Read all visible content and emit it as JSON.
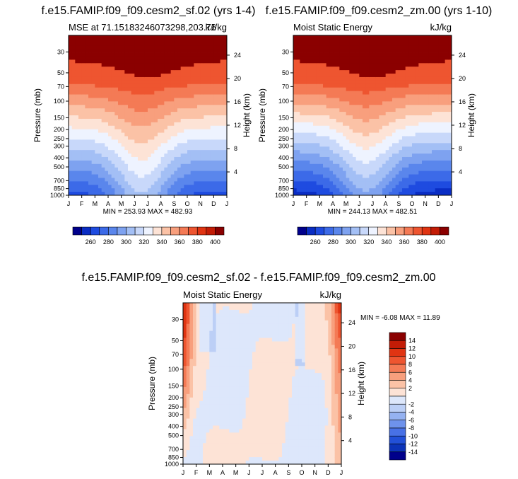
{
  "chart_data": [
    {
      "type": "heatmap",
      "title": "f.e15.FAMIP.f09_f09.cesm2_sf.02 (yrs 1-4)",
      "left_label": "MSE at 71.15183246073298,203.76",
      "right_label": "kJ/kg",
      "ylabel": "Pressure (mb)",
      "ylabel_right": "Height (km)",
      "x": [
        "J",
        "F",
        "M",
        "A",
        "M",
        "J",
        "J",
        "A",
        "S",
        "O",
        "N",
        "D",
        "J"
      ],
      "y_pressure_mb": [
        30,
        50,
        70,
        100,
        150,
        200,
        250,
        300,
        400,
        500,
        700,
        850,
        1000
      ],
      "y_height_km": [
        24,
        20,
        16,
        12,
        8,
        4
      ],
      "stats": "MIN = 253.93   MAX = 482.93",
      "colorbar_levels": [
        260,
        280,
        300,
        320,
        340,
        360,
        380,
        400
      ],
      "colorbar_colors": [
        "#00008b",
        "#0a2dc4",
        "#1e4be0",
        "#3c6ae8",
        "#5a86ec",
        "#7ea2f0",
        "#a3bff5",
        "#c8d8fa",
        "#eef3ff",
        "#fde3d6",
        "#fbc2a6",
        "#f89f7d",
        "#f47a55",
        "#ee5530",
        "#e03412",
        "#c31c06",
        "#8b0000"
      ]
    },
    {
      "type": "heatmap",
      "title": "f.e15.FAMIP.f09_f09.cesm2_zm.00 (yrs 1-10)",
      "left_label": "Moist Static Energy",
      "right_label": "kJ/kg",
      "ylabel": "Pressure (mb)",
      "ylabel_right": "Height (km)",
      "x": [
        "J",
        "F",
        "M",
        "A",
        "M",
        "J",
        "J",
        "A",
        "S",
        "O",
        "N",
        "D",
        "J"
      ],
      "y_pressure_mb": [
        30,
        50,
        70,
        100,
        150,
        200,
        250,
        300,
        400,
        500,
        700,
        850,
        1000
      ],
      "y_height_km": [
        24,
        20,
        16,
        12,
        8,
        4
      ],
      "stats": "MIN = 244.13   MAX = 482.51",
      "colorbar_levels": [
        260,
        280,
        300,
        320,
        340,
        360,
        380,
        400
      ],
      "colorbar_colors": [
        "#00008b",
        "#0a2dc4",
        "#1e4be0",
        "#3c6ae8",
        "#5a86ec",
        "#7ea2f0",
        "#a3bff5",
        "#c8d8fa",
        "#eef3ff",
        "#fde3d6",
        "#fbc2a6",
        "#f89f7d",
        "#f47a55",
        "#ee5530",
        "#e03412",
        "#c31c06",
        "#8b0000"
      ]
    },
    {
      "type": "heatmap",
      "title": "f.e15.FAMIP.f09_f09.cesm2_sf.02 - f.e15.FAMIP.f09_f09.cesm2_zm.00",
      "left_label": "Moist Static Energy",
      "right_label": "kJ/kg",
      "ylabel": "Pressure (mb)",
      "ylabel_right": "Height (km)",
      "x": [
        "J",
        "F",
        "M",
        "A",
        "M",
        "J",
        "J",
        "A",
        "S",
        "O",
        "N",
        "D",
        "J"
      ],
      "y_pressure_mb": [
        30,
        50,
        70,
        100,
        150,
        200,
        250,
        300,
        400,
        500,
        700,
        850,
        1000
      ],
      "y_height_km": [
        24,
        20,
        16,
        12,
        8,
        4
      ],
      "stats": "MIN =  -6.08  MAX =  11.89",
      "colorbar_levels": [
        14,
        12,
        10,
        8,
        6,
        4,
        2,
        -2,
        -4,
        -6,
        -8,
        -10,
        -12,
        -14
      ],
      "colorbar_colors": [
        "#8b0000",
        "#c31c06",
        "#e03412",
        "#ee5530",
        "#f47a55",
        "#f89f7d",
        "#fbc2a6",
        "#fde3d6",
        "#dde7fb",
        "#bccff6",
        "#95b2f1",
        "#6e92ec",
        "#4871e6",
        "#2250d8",
        "#0c33b8",
        "#00008b"
      ]
    }
  ]
}
